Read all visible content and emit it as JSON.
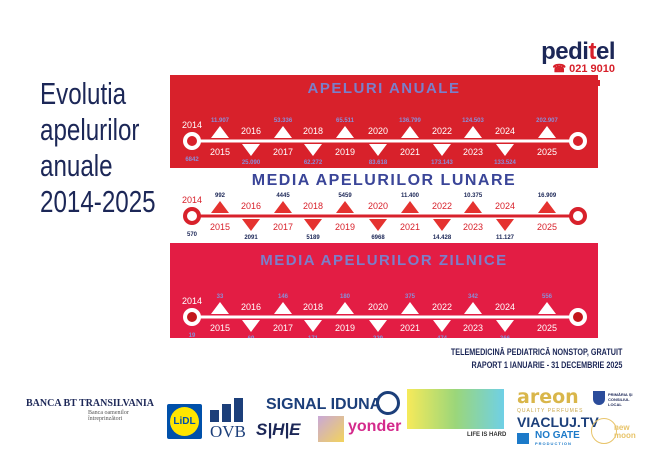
{
  "title": [
    "Evolutia",
    "apelurilor",
    "anuale",
    "2014-2025"
  ],
  "brand": {
    "name_a": "pedi",
    "name_b": "t",
    "name_c": "el",
    "phone": "☎ 021 9010"
  },
  "colors": {
    "navy": "#1c2757",
    "red": "#d8212b",
    "pink_red": "#e31d44",
    "lavender": "#7b7fc9"
  },
  "years": [
    "2014",
    "2015",
    "2016",
    "2017",
    "2018",
    "2019",
    "2020",
    "2021",
    "2022",
    "2023",
    "2024",
    "2025"
  ],
  "bands": [
    {
      "title": "APELURI ANUALE",
      "values": [
        "6842",
        "11.907",
        "25.090",
        "53.336",
        "62.272",
        "65.511",
        "83.618",
        "136.799",
        "173.143",
        "124.503",
        "133.524",
        "202.907"
      ]
    },
    {
      "title": "MEDIA APELURILOR LUNARE",
      "values": [
        "570",
        "992",
        "2091",
        "4445",
        "5189",
        "5459",
        "6968",
        "11.400",
        "14.428",
        "10.375",
        "11.127",
        "16.909"
      ]
    },
    {
      "title": "MEDIA APELURILOR ZILNICE",
      "values": [
        "19",
        "33",
        "69",
        "146",
        "171",
        "180",
        "229",
        "375",
        "474",
        "342",
        "366",
        "556"
      ]
    }
  ],
  "footer": [
    "TELEMEDICINĂ PEDIATRICĂ NONSTOP, GRATUIT",
    "RAPORT 1 IANUARIE - 31 DECEMBRIE 2025"
  ],
  "sponsors": {
    "bt": "BANCA BT TRANSILVANIA",
    "bt_sub": "Banca oamenilor întreprinzători",
    "lidl": "LiDL",
    "ovb": "OVB",
    "signal": "SIGNAL IDUNA",
    "she": "S|H|E",
    "yonder": "yonder",
    "lih": "LIFE IS HARD",
    "areon": "areon",
    "areon_sub": "QUALITY PERFUMES",
    "viacluj": "VIACLUJ.TV",
    "nogate": "NO GATE",
    "nogate_sub": "PRODUCTION",
    "primaria": "PRIMĂRIA ȘI CONSILIUL LOCAL",
    "newmoon": "new moon"
  }
}
